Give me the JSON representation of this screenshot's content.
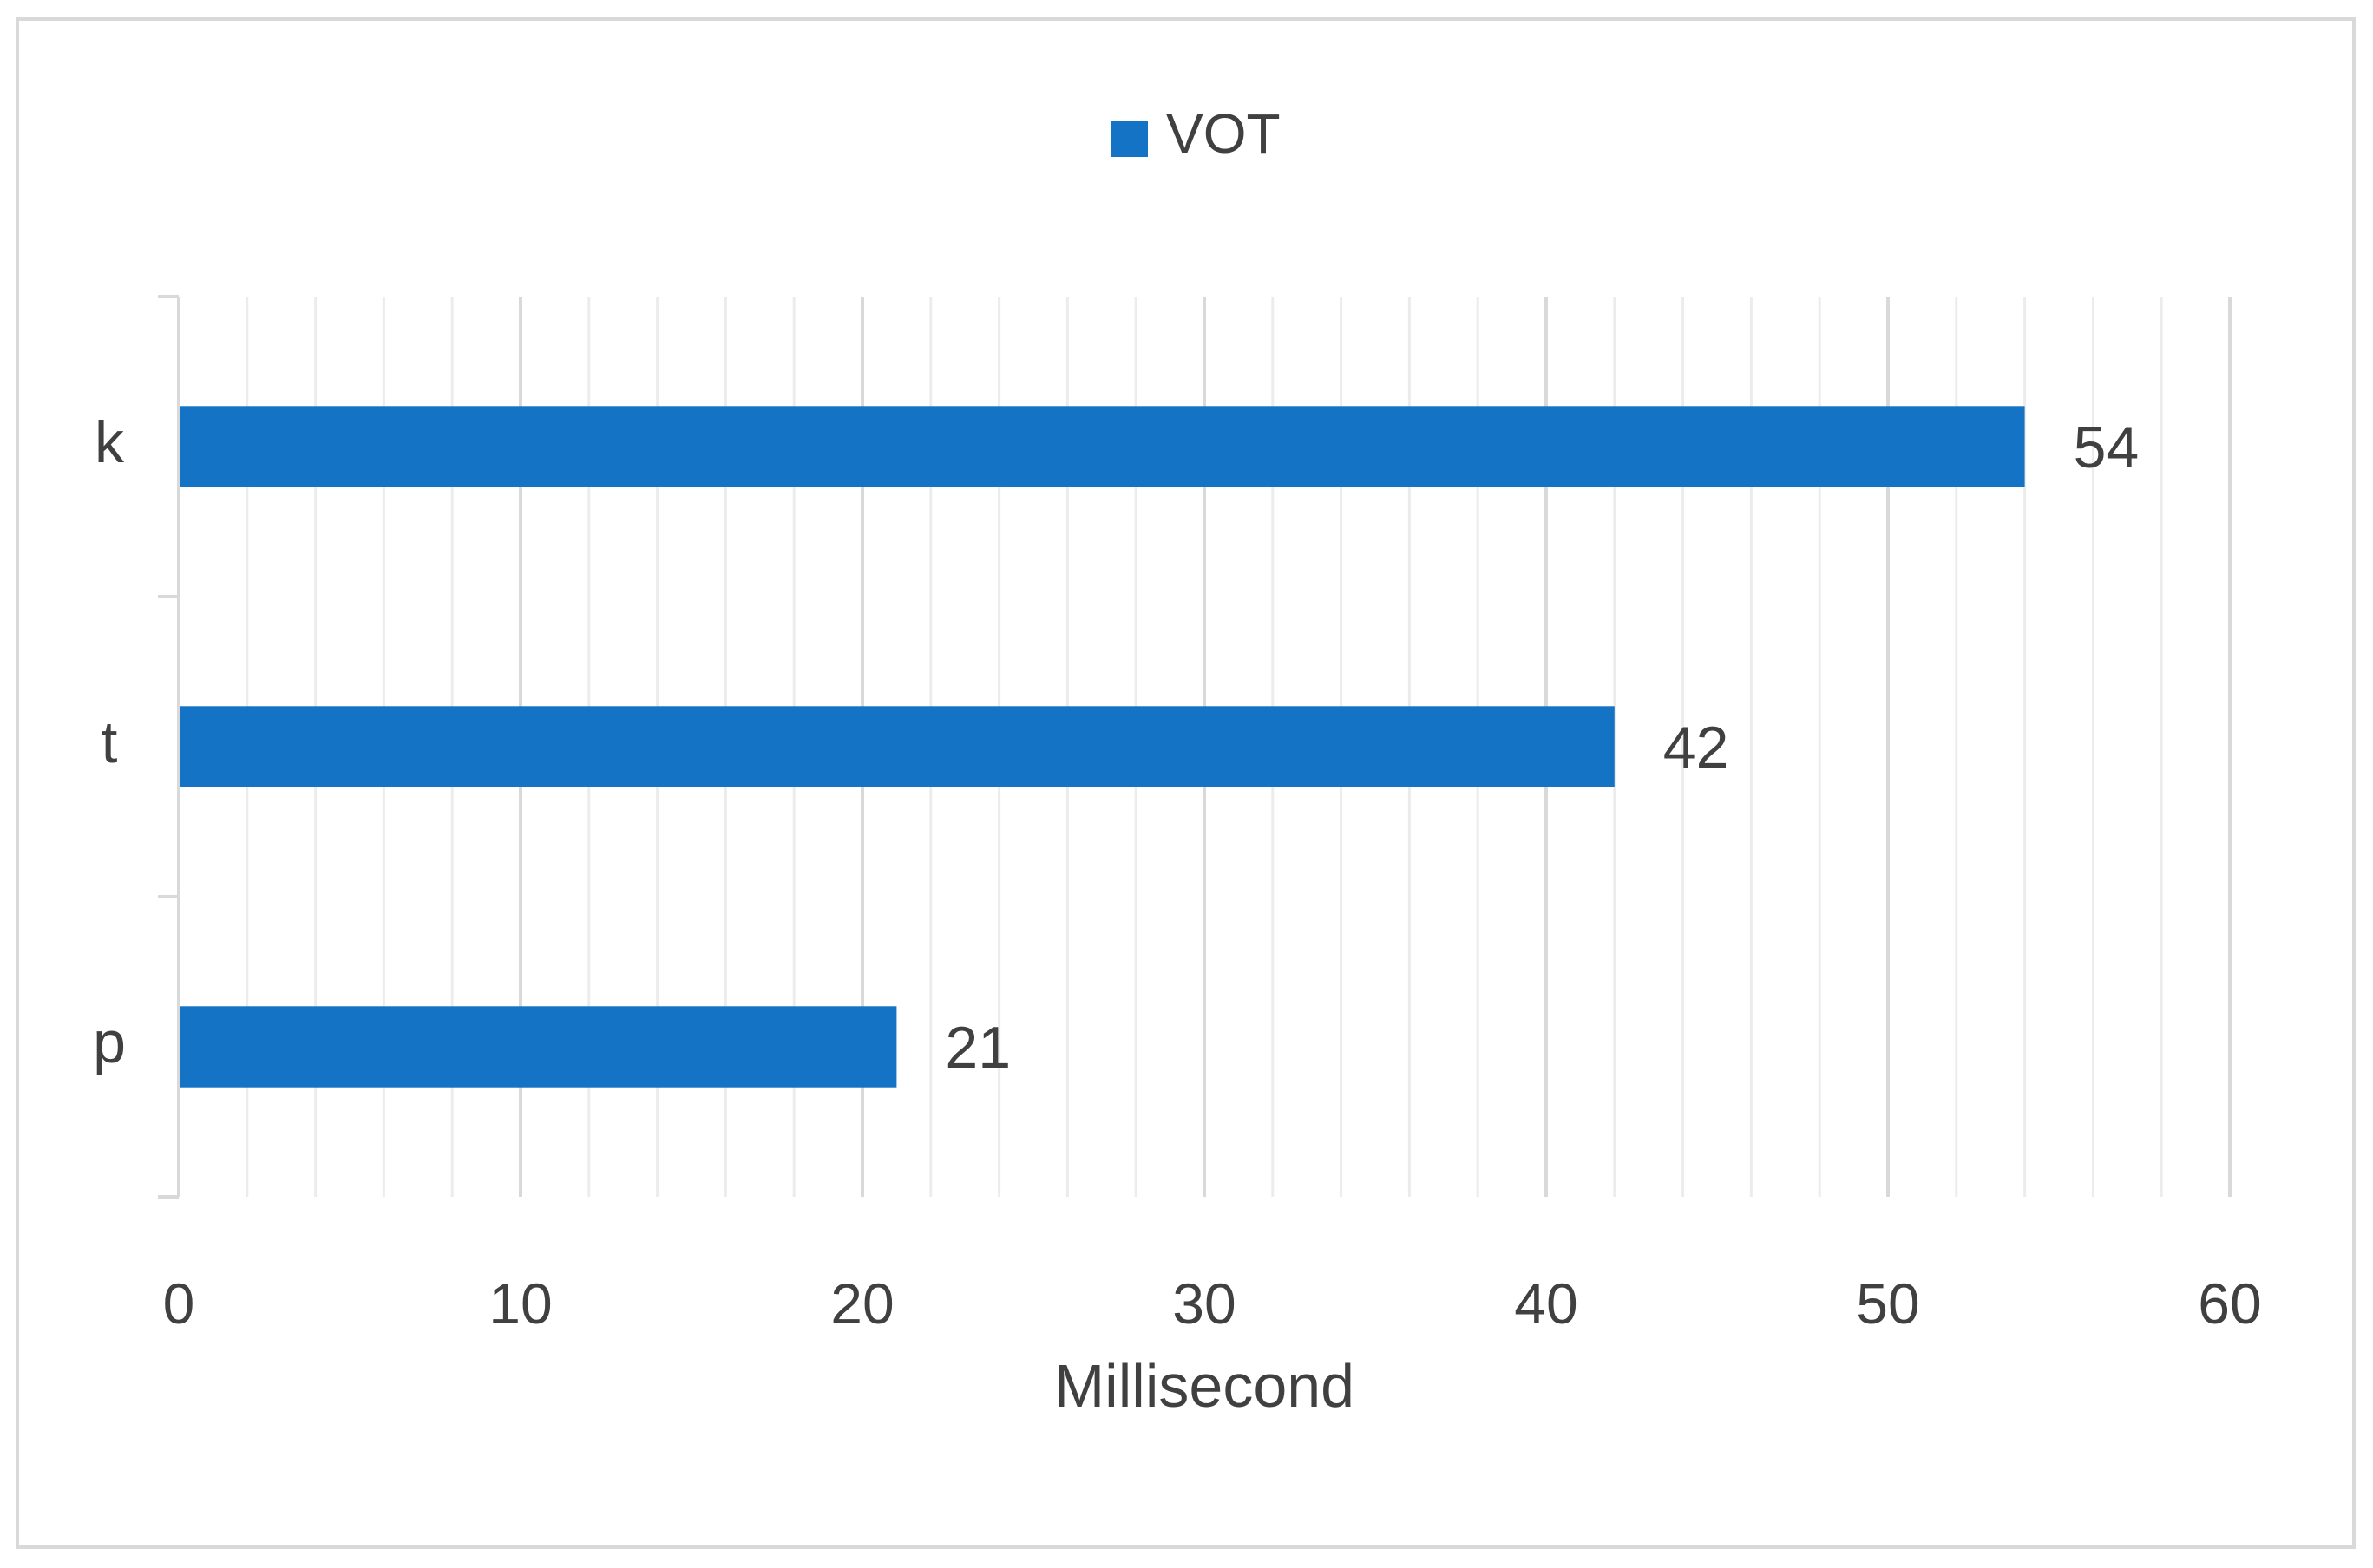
{
  "chart_data": {
    "type": "bar",
    "orientation": "horizontal",
    "title": "",
    "xlabel": "Millisecond",
    "ylabel": "",
    "categories": [
      "k",
      "t",
      "p"
    ],
    "series": [
      {
        "name": "VOT",
        "values": [
          54,
          42,
          21
        ]
      }
    ],
    "xlim": [
      0,
      60
    ],
    "x_ticks": [
      0,
      10,
      20,
      30,
      40,
      50,
      60
    ],
    "x_minor_step": 2,
    "grid": true,
    "legend_position": "top",
    "data_labels": true,
    "colors": {
      "bar": "#1473C5",
      "major_grid": "#d9d9d9",
      "minor_grid": "#ececec",
      "text": "#404040"
    }
  }
}
